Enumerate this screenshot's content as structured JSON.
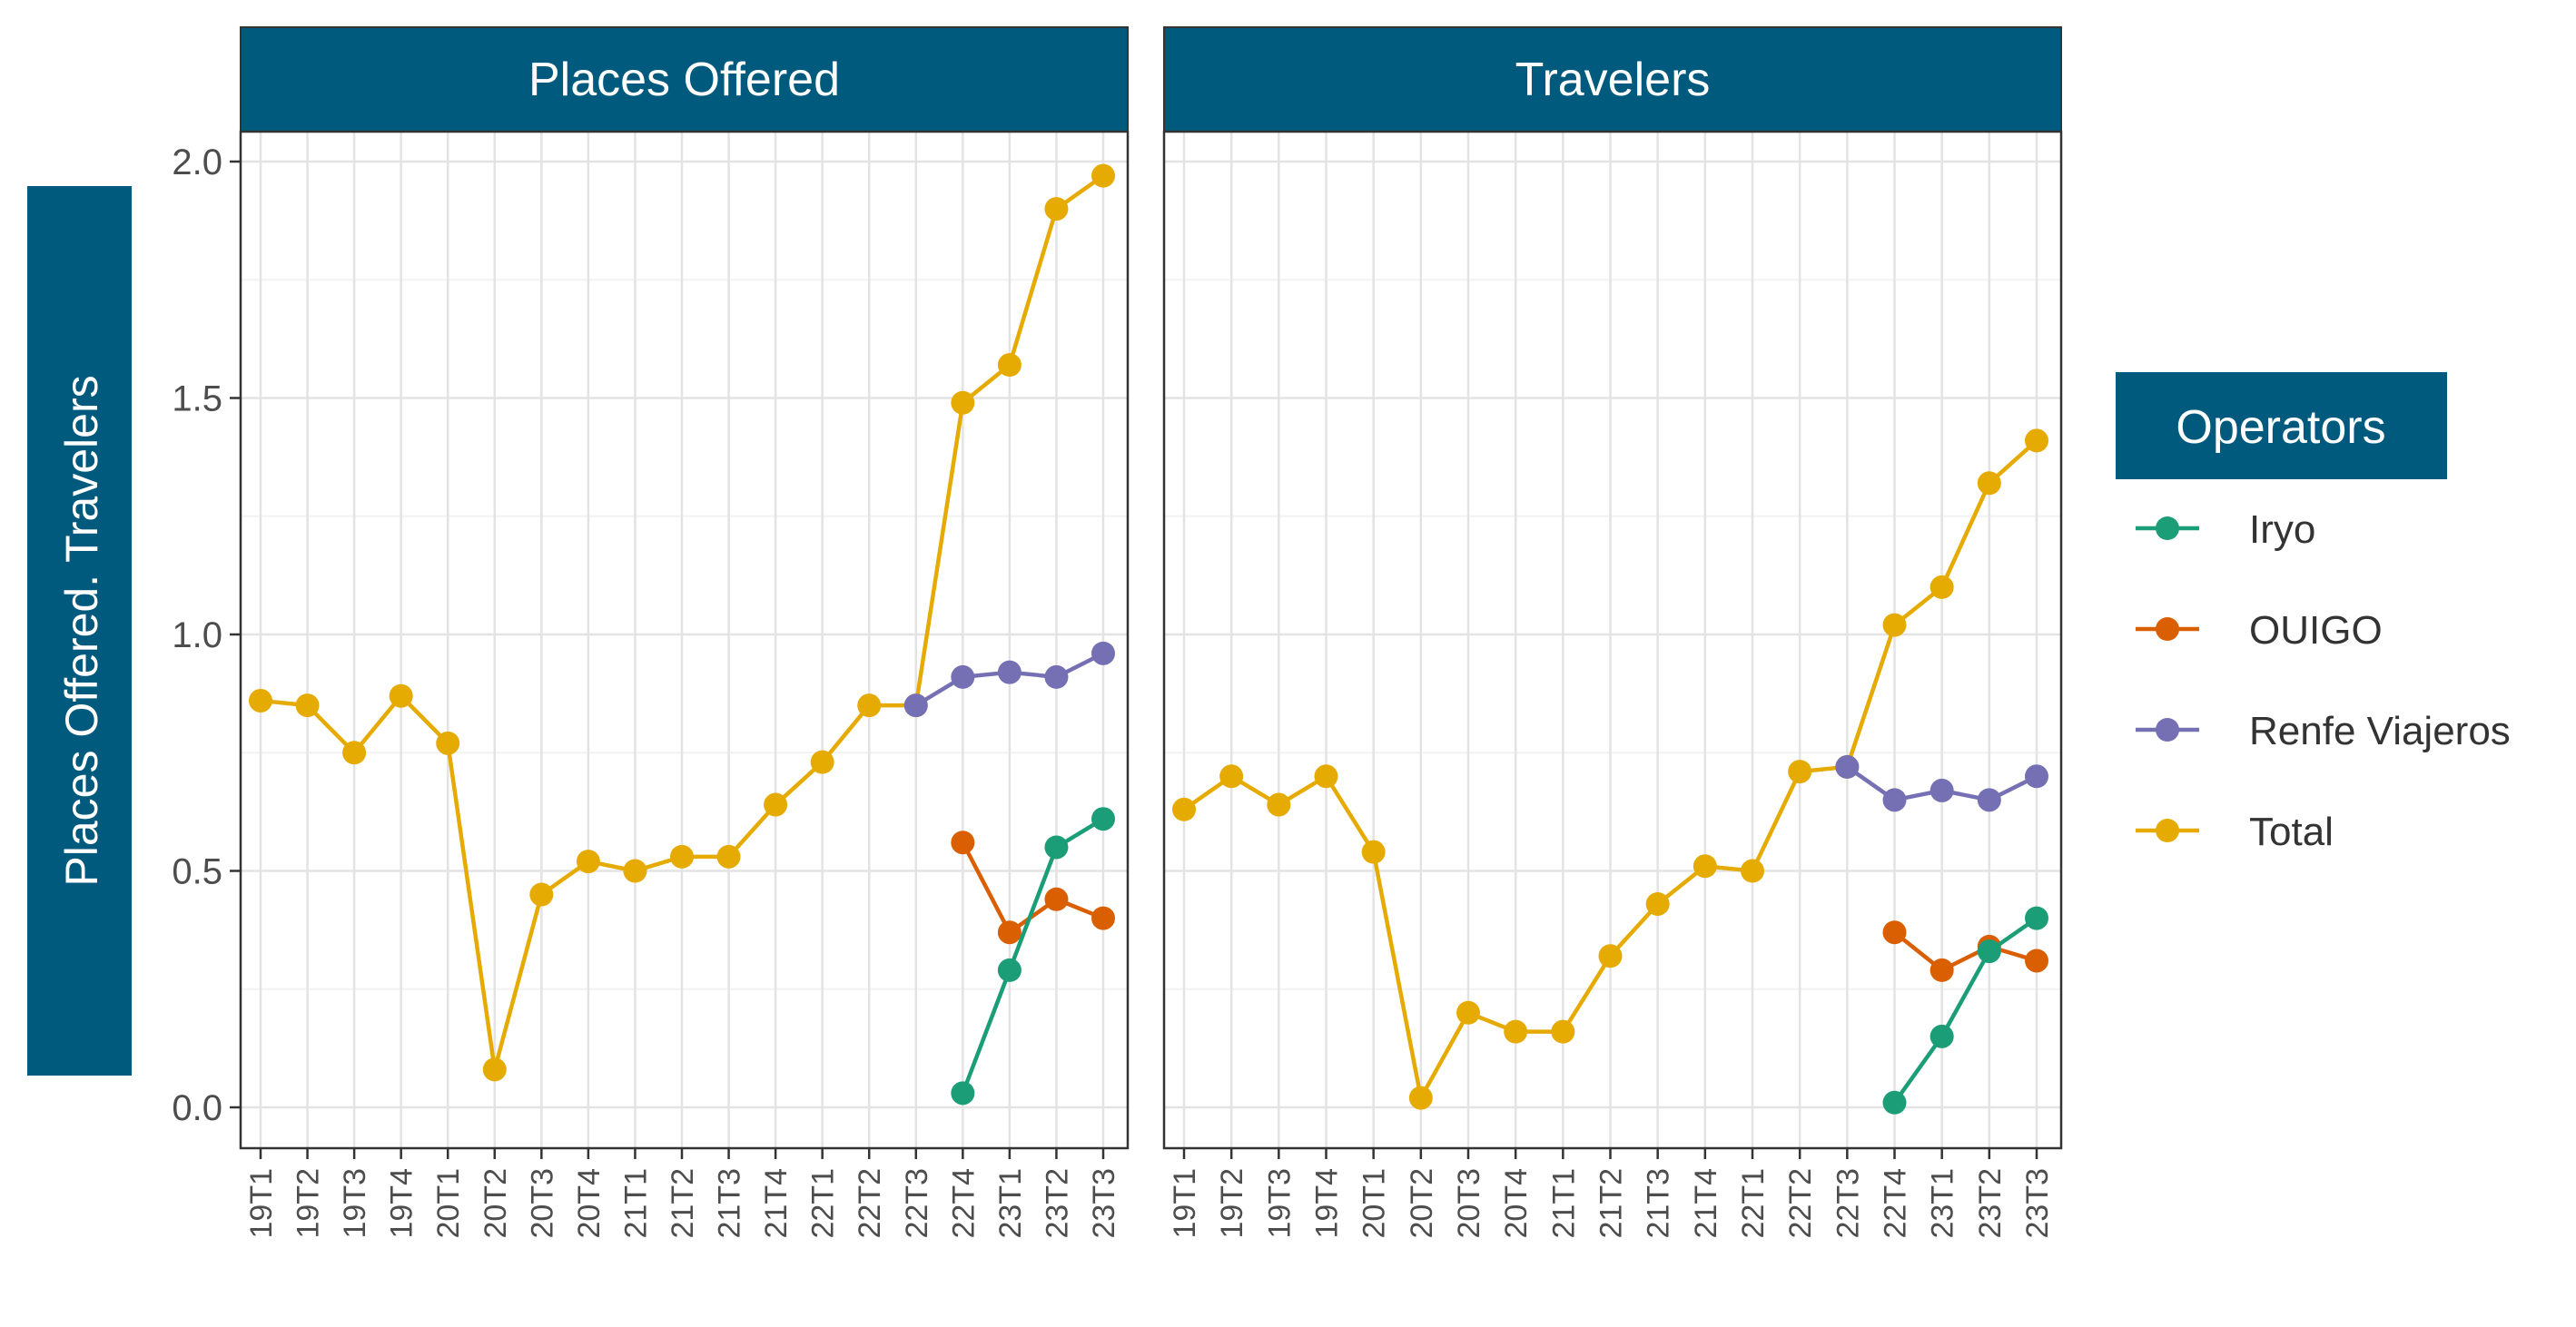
{
  "chart_data": {
    "type": "line",
    "ylabel": "Places Offered. Travelers",
    "ylim": [
      0,
      2.0
    ],
    "yticks": [
      "0.0",
      "0.5",
      "1.0",
      "1.5",
      "2.0"
    ],
    "grid": true,
    "legend_title": "Operators",
    "legend_placement": "right",
    "categories": [
      "19T1",
      "19T2",
      "19T3",
      "19T4",
      "20T1",
      "20T2",
      "20T3",
      "20T4",
      "21T1",
      "21T2",
      "21T3",
      "21T4",
      "22T1",
      "22T2",
      "22T3",
      "22T4",
      "23T1",
      "23T2",
      "23T3"
    ],
    "operators": [
      {
        "name": "Iryo",
        "color": "#1b9e77"
      },
      {
        "name": "OUIGO",
        "color": "#d95f02"
      },
      {
        "name": "Renfe Viajeros",
        "color": "#7570b3"
      },
      {
        "name": "Total",
        "color": "#e6ab02"
      }
    ],
    "panels": [
      {
        "title": "Places Offered",
        "series": [
          {
            "name": "Total",
            "values": [
              0.86,
              0.85,
              0.75,
              0.87,
              0.77,
              0.08,
              0.45,
              0.52,
              0.5,
              0.53,
              0.53,
              0.64,
              0.73,
              0.85,
              0.85,
              1.49,
              1.57,
              1.9,
              1.97
            ]
          },
          {
            "name": "Renfe Viajeros",
            "values": [
              null,
              null,
              null,
              null,
              null,
              null,
              null,
              null,
              null,
              null,
              null,
              null,
              null,
              null,
              0.85,
              0.91,
              0.92,
              0.91,
              0.96
            ]
          },
          {
            "name": "OUIGO",
            "values": [
              null,
              null,
              null,
              null,
              null,
              null,
              null,
              null,
              null,
              null,
              null,
              null,
              null,
              null,
              null,
              0.56,
              0.37,
              0.44,
              0.4
            ]
          },
          {
            "name": "Iryo",
            "values": [
              null,
              null,
              null,
              null,
              null,
              null,
              null,
              null,
              null,
              null,
              null,
              null,
              null,
              null,
              null,
              0.03,
              0.29,
              0.55,
              0.61
            ]
          }
        ]
      },
      {
        "title": "Travelers",
        "series": [
          {
            "name": "Total",
            "values": [
              0.63,
              0.7,
              0.64,
              0.7,
              0.54,
              0.02,
              0.2,
              0.16,
              0.16,
              0.32,
              0.43,
              0.51,
              0.5,
              0.71,
              0.72,
              1.02,
              1.1,
              1.32,
              1.41
            ]
          },
          {
            "name": "Renfe Viajeros",
            "values": [
              null,
              null,
              null,
              null,
              null,
              null,
              null,
              null,
              null,
              null,
              null,
              null,
              null,
              null,
              0.72,
              0.65,
              0.67,
              0.65,
              0.7
            ]
          },
          {
            "name": "OUIGO",
            "values": [
              null,
              null,
              null,
              null,
              null,
              null,
              null,
              null,
              null,
              null,
              null,
              null,
              null,
              null,
              null,
              0.37,
              0.29,
              0.34,
              0.31
            ]
          },
          {
            "name": "Iryo",
            "values": [
              null,
              null,
              null,
              null,
              null,
              null,
              null,
              null,
              null,
              null,
              null,
              null,
              null,
              null,
              null,
              0.01,
              0.15,
              0.33,
              0.4
            ]
          }
        ]
      }
    ]
  }
}
